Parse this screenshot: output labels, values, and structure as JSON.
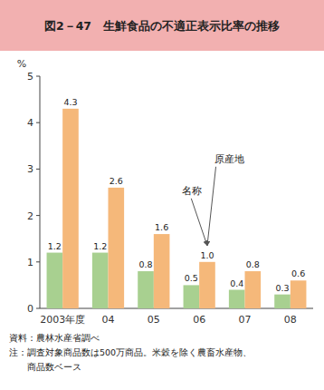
{
  "chart_data": {
    "type": "bar",
    "title": "図2－47　生鮮食品の不適正表示比率の推移",
    "y_label": "%",
    "categories": [
      "2003年度",
      "04",
      "05",
      "06",
      "07",
      "08"
    ],
    "series": [
      {
        "color": "#a8d090",
        "values": [
          1.2,
          1.2,
          0.8,
          0.5,
          0.4,
          0.3
        ]
      },
      {
        "color": "#f5b87a",
        "values": [
          4.3,
          2.6,
          1.6,
          1.0,
          0.8,
          0.6
        ],
        "value_labels": [
          "4.3",
          "2.6",
          "1.6",
          "1.0",
          "0.8",
          "0.6"
        ]
      }
    ],
    "ylim": [
      0,
      5
    ],
    "yticks": [
      0,
      1,
      2,
      3,
      4,
      5
    ],
    "grid": false,
    "data_labels": true,
    "annotations": [
      {
        "text": "原産地",
        "category": "06"
      },
      {
        "text": "名称",
        "category": "06"
      }
    ],
    "footnotes": [
      "資料：農林水産省調べ",
      "注：調査対象商品数は500万商品。米穀を除く農畜水産物、",
      "　　商品数ベース"
    ]
  }
}
